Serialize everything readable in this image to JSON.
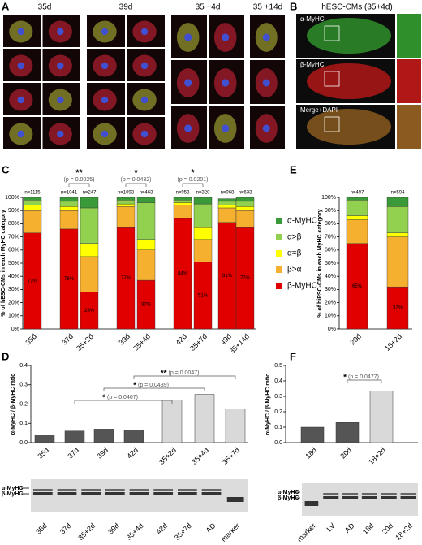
{
  "figure": {
    "panels": [
      "A",
      "B",
      "C",
      "D",
      "E",
      "F"
    ]
  },
  "panel_a": {
    "labels": [
      "35d",
      "39d",
      "35 +4d",
      "35 +14d"
    ]
  },
  "panel_b": {
    "title": "hESC-CMs (35+4d)",
    "channels": [
      "α-MyHC",
      "β-MyHC",
      "Merge+DAPI"
    ]
  },
  "chart_data": [
    {
      "type": "stacked_bar",
      "ylabel": "% of hESC-CMs in each MyHC category",
      "categories": [
        "35d",
        "37d",
        "35+2d",
        "39d",
        "35+4d",
        "42d",
        "35+7d",
        "49d",
        "35+14d"
      ],
      "n_labels": [
        "n=1115",
        "n=1041",
        "n=247",
        "n=1093",
        "n=463",
        "n=953",
        "n=320",
        "n=968",
        "n=633"
      ],
      "series": [
        {
          "name": "β-MyHC",
          "color": "#e00000",
          "values": [
            73,
            76,
            28,
            77,
            37,
            84,
            51,
            81,
            77
          ],
          "value_labels": [
            "73%",
            "76%",
            "28%",
            "77%",
            "37%",
            "84%",
            "51%",
            "81%",
            "77%"
          ]
        },
        {
          "name": "β>α",
          "color": "#f5b030",
          "values": [
            17,
            14,
            27,
            16,
            23,
            10,
            17,
            11,
            13
          ]
        },
        {
          "name": "α=β",
          "color": "#ffff00",
          "values": [
            4,
            3,
            10,
            2,
            8,
            2,
            9,
            2,
            3
          ]
        },
        {
          "name": "α>β",
          "color": "#92d050",
          "values": [
            4,
            4,
            27,
            3,
            28,
            2,
            18,
            3,
            4
          ]
        },
        {
          "name": "α-MyHC",
          "color": "#3a9a3a",
          "values": [
            2,
            3,
            8,
            2,
            4,
            2,
            5,
            2,
            3
          ]
        }
      ],
      "ylim": [
        0,
        100
      ],
      "yticks": [
        {
          "value": 0,
          "label": "0%"
        },
        {
          "value": 10,
          "label": "10%"
        },
        {
          "value": 20,
          "label": "20%"
        },
        {
          "value": 30,
          "label": "30%"
        },
        {
          "value": 40,
          "label": "40%"
        },
        {
          "value": 50,
          "label": "50%"
        },
        {
          "value": 60,
          "label": "60%"
        },
        {
          "value": 70,
          "label": "70%"
        },
        {
          "value": 80,
          "label": "80%"
        },
        {
          "value": 90,
          "label": "90%"
        },
        {
          "value": 100,
          "label": "100%"
        }
      ],
      "legend": "right",
      "annotations": [
        {
          "stars": "**",
          "p": "(p = 0.0025)"
        },
        {
          "stars": "*",
          "p": "(p = 0.0432)"
        },
        {
          "stars": "*",
          "p": "(p = 0.0201)"
        }
      ]
    },
    {
      "type": "stacked_bar",
      "ylabel": "% of hiPSC-CMs in each MyHC category",
      "categories": [
        "20d",
        "18+2d"
      ],
      "n_labels": [
        "n=497",
        "n=594"
      ],
      "series": [
        {
          "name": "β-MyHC",
          "color": "#e00000",
          "values": [
            65,
            32
          ],
          "value_labels": [
            "65%",
            "32%"
          ]
        },
        {
          "name": "β>α",
          "color": "#f5b030",
          "values": [
            18,
            38
          ]
        },
        {
          "name": "α=β",
          "color": "#ffff00",
          "values": [
            3,
            3
          ]
        },
        {
          "name": "α>β",
          "color": "#92d050",
          "values": [
            12,
            20
          ]
        },
        {
          "name": "α-MyHC",
          "color": "#3a9a3a",
          "values": [
            2,
            7
          ]
        }
      ],
      "ylim": [
        0,
        100
      ],
      "yticks": [
        {
          "value": 0,
          "label": "0%"
        },
        {
          "value": 10,
          "label": "10%"
        },
        {
          "value": 20,
          "label": "20%"
        },
        {
          "value": 30,
          "label": "30%"
        },
        {
          "value": 40,
          "label": "40%"
        },
        {
          "value": 50,
          "label": "50%"
        },
        {
          "value": 60,
          "label": "60%"
        },
        {
          "value": 70,
          "label": "70%"
        },
        {
          "value": 80,
          "label": "80%"
        },
        {
          "value": 90,
          "label": "90%"
        },
        {
          "value": 100,
          "label": "100%"
        }
      ],
      "annotations": []
    },
    {
      "type": "bar",
      "ylabel": "α-MyHC / β-MyHC ratio",
      "categories": [
        "35d",
        "37d",
        "39d",
        "42d",
        "35+2d",
        "35+4d",
        "35+7d"
      ],
      "values": [
        0.04,
        0.06,
        0.07,
        0.065,
        0.22,
        0.25,
        0.175
      ],
      "colors": [
        "#555555",
        "#555555",
        "#555555",
        "#555555",
        "#d9d9d9",
        "#d9d9d9",
        "#d9d9d9"
      ],
      "ylim": [
        0,
        0.4
      ],
      "yticks": [
        {
          "value": 0,
          "label": "0.0"
        },
        {
          "value": 0.1,
          "label": "0.1"
        },
        {
          "value": 0.2,
          "label": "0.2"
        },
        {
          "value": 0.3,
          "label": "0.3"
        },
        {
          "value": 0.4,
          "label": "0.4"
        }
      ],
      "annotations": [
        {
          "stars": "*",
          "p": "(p = 0.0407)"
        },
        {
          "stars": "*",
          "p": "(p = 0.0439)"
        },
        {
          "stars": "**",
          "p": "(p = 0.0047)"
        }
      ]
    },
    {
      "type": "bar",
      "ylabel": "α-MyHC / β-MyHC ratio",
      "categories": [
        "18d",
        "20d",
        "18+2d"
      ],
      "values": [
        0.1,
        0.13,
        0.335
      ],
      "colors": [
        "#555555",
        "#555555",
        "#d9d9d9"
      ],
      "ylim": [
        0,
        0.5
      ],
      "yticks": [
        {
          "value": 0,
          "label": "0.0"
        },
        {
          "value": 0.1,
          "label": "0.1"
        },
        {
          "value": 0.2,
          "label": "0.2"
        },
        {
          "value": 0.3,
          "label": "0.3"
        },
        {
          "value": 0.4,
          "label": "0.4"
        },
        {
          "value": 0.5,
          "label": "0.5"
        }
      ],
      "annotations": [
        {
          "stars": "*",
          "p": "(p = 0.0477)"
        }
      ]
    }
  ],
  "gels": [
    {
      "bands": [
        "α-MyHC",
        "β-MyHC"
      ],
      "lanes": [
        "35d",
        "37d",
        "35+2d",
        "39d",
        "35+4d",
        "42d",
        "35+7d",
        "AD",
        "marker"
      ]
    },
    {
      "bands": [
        "α-MyHC",
        "β-MyHC"
      ],
      "lanes": [
        "marker",
        "LV",
        "AD",
        "18d",
        "20d",
        "18+2d"
      ]
    }
  ]
}
